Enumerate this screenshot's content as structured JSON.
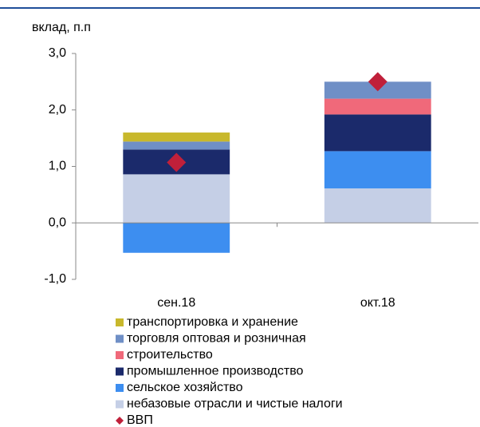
{
  "chart_data": {
    "type": "stacked_bar",
    "y_label": "вклад, п.п",
    "categories": [
      "сен.18",
      "окт.18"
    ],
    "ylim": [
      -1,
      3
    ],
    "yticks": [
      {
        "value": 3,
        "label": "3,0"
      },
      {
        "value": 2,
        "label": "2,0"
      },
      {
        "value": 1,
        "label": "1,0"
      },
      {
        "value": 0,
        "label": "0,0"
      },
      {
        "value": -1,
        "label": "-1,0"
      }
    ],
    "series": [
      {
        "name": "транспортировка и хранение",
        "color": "#c8b82c",
        "values": [
          0.16,
          0
        ]
      },
      {
        "name": "торговля оптовая и розничная",
        "color": "#6f8fc6",
        "values": [
          0.14,
          0.3
        ]
      },
      {
        "name": "строительство",
        "color": "#f0697a",
        "values": [
          0,
          0.28
        ]
      },
      {
        "name": "промышленное производство",
        "color": "#1b2a6b",
        "values": [
          0.44,
          0.65
        ]
      },
      {
        "name": "сельское хозяйство",
        "color": "#3d8ef0",
        "values": [
          -0.53,
          0.66
        ]
      },
      {
        "name": "небазовые отрасли и чистые налоги",
        "color": "#c5cfe6",
        "values": [
          0.86,
          0.61
        ]
      }
    ],
    "markers": {
      "name": "ВВП",
      "color": "#c0203a",
      "shape": "diamond",
      "values": [
        1.07,
        2.5
      ]
    }
  }
}
